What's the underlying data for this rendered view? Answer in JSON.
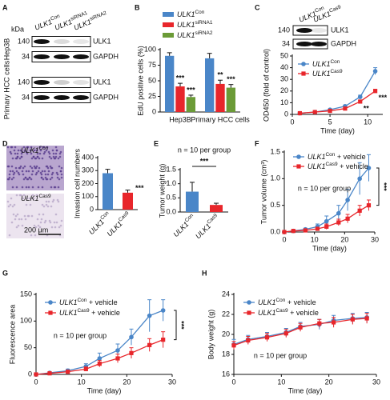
{
  "western_blot": {
    "panel": "A",
    "unit": "kDa",
    "lanes": [
      {
        "gene": "ULK1",
        "sup": "Con"
      },
      {
        "gene": "ULK1",
        "sup": "siRNA1"
      },
      {
        "gene": "ULK1",
        "sup": "siRNA2"
      }
    ],
    "groups": [
      {
        "label": "Hep3B",
        "rows": [
          {
            "kda": 140,
            "protein": "ULK1"
          },
          {
            "kda": 34,
            "protein": "GAPDH"
          }
        ]
      },
      {
        "label": "Primary HCC cells",
        "rows": [
          {
            "kda": 140,
            "protein": "ULK1"
          },
          {
            "kda": 34,
            "protein": "GAPDH"
          }
        ]
      }
    ]
  },
  "chart_data": [
    {
      "type": "bar",
      "panel": "B",
      "ylabel": "EdU positive cells (%)",
      "categories": [
        "Hep3B",
        "Primary HCC cells"
      ],
      "series": [
        {
          "name": {
            "gene": "ULK1",
            "sup": "Con"
          },
          "color": "#4a86c8",
          "values": [
            90,
            86
          ],
          "errors": [
            5,
            8
          ]
        },
        {
          "name": {
            "gene": "ULK1",
            "sup": "siRNA1"
          },
          "color": "#e8262b",
          "values": [
            41,
            45
          ],
          "errors": [
            5,
            6
          ],
          "significance": [
            "***",
            "**"
          ]
        },
        {
          "name": {
            "gene": "ULK1",
            "sup": "siRNA2"
          },
          "color": "#6b9b37",
          "values": [
            24,
            39
          ],
          "errors": [
            3,
            5
          ],
          "significance": [
            "***",
            "***"
          ]
        }
      ],
      "ylim": [
        0,
        100
      ],
      "yticks": [
        0,
        25,
        50,
        75,
        100
      ]
    },
    {
      "type": "line",
      "panel": "C",
      "ylabel": "OD450 (fold of control)",
      "xlabel": "Time (day)",
      "blot": {
        "lanes": [
          {
            "gene": "ULK1",
            "sup": "Con"
          },
          {
            "gene": "ULK1",
            "sup": "Cas9"
          }
        ],
        "rows": [
          {
            "kda": 140,
            "protein": "ULK1"
          },
          {
            "kda": 34,
            "protein": "GAPDH"
          }
        ]
      },
      "x": [
        1,
        3,
        5,
        7,
        9,
        11
      ],
      "series": [
        {
          "name": {
            "gene": "ULK1",
            "sup": "Con"
          },
          "color": "#4a86c8",
          "marker": "circle",
          "values": [
            1,
            2,
            4,
            7,
            15,
            37
          ],
          "errors": [
            0.3,
            0.4,
            0.6,
            1,
            1.5,
            3
          ]
        },
        {
          "name": {
            "gene": "ULK1",
            "sup": "Cas9"
          },
          "color": "#e8262b",
          "marker": "square",
          "values": [
            1,
            2,
            3,
            5,
            11,
            20
          ],
          "errors": [
            0.3,
            0.3,
            0.4,
            0.6,
            1,
            1.5
          ],
          "significance": [
            null,
            null,
            null,
            null,
            "**",
            "***"
          ]
        }
      ],
      "xlim": [
        0,
        12
      ],
      "xticks": [
        0,
        5,
        10
      ],
      "ylim": [
        0,
        50
      ],
      "yticks": [
        0,
        10,
        20,
        30,
        40,
        50
      ]
    },
    {
      "type": "bar",
      "panel": "D",
      "ylabel": "Invasion cell numbers",
      "image_labels": [
        {
          "gene": "ULK1",
          "sup": "Con"
        },
        {
          "gene": "ULK1",
          "sup": "Cas9"
        }
      ],
      "scale_bar": "200 μm",
      "categories": [
        {
          "gene": "ULK1",
          "sup": "Con"
        },
        {
          "gene": "ULK1",
          "sup": "Cas9"
        }
      ],
      "values": [
        280,
        130
      ],
      "errors": [
        30,
        20
      ],
      "colors": [
        "#4a86c8",
        "#e8262b"
      ],
      "significance": [
        null,
        "***"
      ],
      "ylim": [
        0,
        400
      ],
      "yticks": [
        0,
        100,
        200,
        300,
        400
      ]
    },
    {
      "type": "bar",
      "panel": "E",
      "ylabel": "Tumor weight (g)",
      "note": "n = 10 per group",
      "significance": "***",
      "categories": [
        {
          "gene": "ULK1",
          "sup": "Con"
        },
        {
          "gene": "ULK1",
          "sup": "Cas9"
        }
      ],
      "values": [
        0.72,
        0.25
      ],
      "errors": [
        0.33,
        0.06
      ],
      "colors": [
        "#4a86c8",
        "#e8262b"
      ],
      "ylim": [
        0,
        1.5
      ],
      "yticks": [
        {
          "value": 0,
          "label": "0.0"
        },
        0.5,
        {
          "value": 1,
          "label": "1.0"
        },
        1.5
      ]
    },
    {
      "type": "line",
      "panel": "F",
      "ylabel": "Tumor volume (cm³)",
      "xlabel": "Time (day)",
      "note": "n = 10 per group",
      "significance": "***",
      "x": [
        0,
        3,
        7,
        11,
        14,
        18,
        21,
        25,
        28
      ],
      "series": [
        {
          "name": {
            "gene": "ULK1",
            "sup": "Con",
            "suffix": " + vehicle"
          },
          "color": "#4a86c8",
          "marker": "circle",
          "values": [
            0,
            0.02,
            0.05,
            0.1,
            0.2,
            0.35,
            0.6,
            1.0,
            1.2
          ],
          "errors": [
            0,
            0.01,
            0.02,
            0.05,
            0.1,
            0.15,
            0.2,
            0.3,
            0.25
          ]
        },
        {
          "name": {
            "gene": "ULK1",
            "sup": "Cas9",
            "suffix": " + vehicle"
          },
          "color": "#e8262b",
          "marker": "square",
          "values": [
            0,
            0.02,
            0.03,
            0.06,
            0.1,
            0.18,
            0.25,
            0.4,
            0.5
          ],
          "errors": [
            0,
            0.01,
            0.01,
            0.03,
            0.05,
            0.06,
            0.08,
            0.1,
            0.1
          ]
        }
      ],
      "xlim": [
        0,
        30
      ],
      "xticks": [
        0,
        10,
        20,
        30
      ],
      "ylim": [
        0,
        1.5
      ],
      "yticks": [
        {
          "value": 0,
          "label": "0.0"
        },
        0.5,
        {
          "value": 1,
          "label": "1.0"
        },
        1.5
      ]
    },
    {
      "type": "line",
      "panel": "G",
      "ylabel": "Fluorescence area",
      "xlabel": "Time (day)",
      "note": "n = 10 per group",
      "significance": "***",
      "x": [
        0,
        3,
        7,
        11,
        14,
        18,
        21,
        25,
        28
      ],
      "series": [
        {
          "name": {
            "gene": "ULK1",
            "sup": "Con",
            "suffix": " + vehicle"
          },
          "color": "#4a86c8",
          "marker": "circle",
          "values": [
            0,
            3,
            7,
            15,
            30,
            45,
            70,
            110,
            120
          ],
          "errors": [
            0,
            2,
            3,
            5,
            10,
            12,
            15,
            30,
            20
          ]
        },
        {
          "name": {
            "gene": "ULK1",
            "sup": "Cas9",
            "suffix": " + vehicle"
          },
          "color": "#e8262b",
          "marker": "square",
          "values": [
            0,
            2,
            5,
            10,
            20,
            30,
            40,
            55,
            65
          ],
          "errors": [
            0,
            1,
            2,
            4,
            6,
            8,
            10,
            12,
            15
          ]
        }
      ],
      "xlim": [
        0,
        30
      ],
      "xticks": [
        0,
        10,
        20,
        30
      ],
      "ylim": [
        0,
        150
      ],
      "yticks": [
        0,
        50,
        100,
        150
      ]
    },
    {
      "type": "line",
      "panel": "H",
      "ylabel": "Body weight (g)",
      "xlabel": "Time (day)",
      "note": "n = 10 per group",
      "x": [
        0,
        3,
        7,
        11,
        14,
        18,
        21,
        25,
        28
      ],
      "series": [
        {
          "name": {
            "gene": "ULK1",
            "sup": "Con",
            "suffix": " + vehicle"
          },
          "color": "#4a86c8",
          "marker": "circle",
          "values": [
            19,
            19.5,
            19.8,
            20.2,
            20.8,
            21.0,
            21.4,
            21.6,
            21.7
          ],
          "errors": [
            0.5,
            0.4,
            0.4,
            0.4,
            0.4,
            0.5,
            0.5,
            0.5,
            0.5
          ]
        },
        {
          "name": {
            "gene": "ULK1",
            "sup": "Cas9",
            "suffix": " + vehicle"
          },
          "color": "#e8262b",
          "marker": "square",
          "values": [
            18.9,
            19.4,
            19.7,
            20.1,
            20.7,
            21.1,
            21.2,
            21.5,
            21.6
          ],
          "errors": [
            0.4,
            0.4,
            0.4,
            0.4,
            0.4,
            0.4,
            0.5,
            0.5,
            0.5
          ]
        }
      ],
      "xlim": [
        0,
        30
      ],
      "xticks": [
        0,
        10,
        20,
        30
      ],
      "ylim": [
        16,
        24
      ],
      "yticks": [
        16,
        18,
        20,
        22,
        24
      ]
    }
  ]
}
